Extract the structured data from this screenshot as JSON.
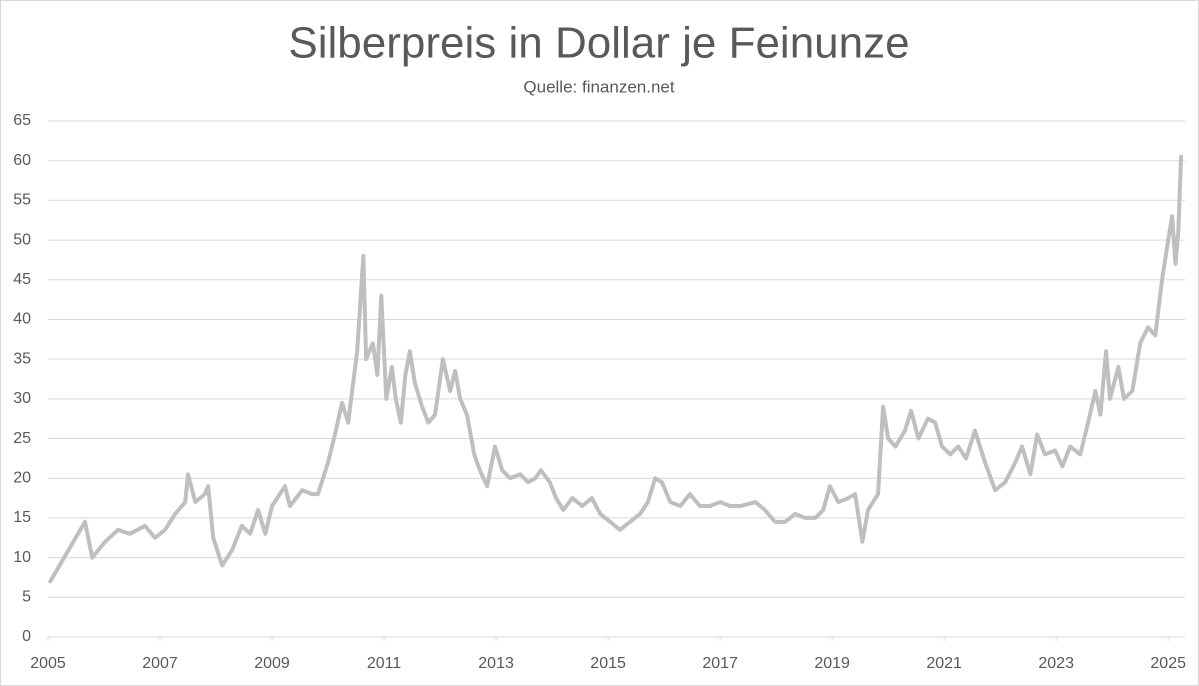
{
  "chart_data": {
    "type": "line",
    "title": "Silberpreis in Dollar je Feinunze",
    "subtitle": "Quelle: finanzen.net",
    "color": "#bfbfbf",
    "grid": true,
    "xlim": [
      2005,
      2025.3
    ],
    "xticks": [
      2005,
      2007,
      2009,
      2011,
      2013,
      2015,
      2017,
      2019,
      2021,
      2023,
      2025
    ],
    "ylim": [
      0,
      65
    ],
    "yticks": [
      0,
      5,
      10,
      15,
      20,
      25,
      30,
      35,
      40,
      45,
      50,
      55,
      60,
      65
    ],
    "x": [
      2005.04,
      2005.66,
      2005.79,
      2006.02,
      2006.25,
      2006.46,
      2006.73,
      2006.91,
      2007.09,
      2007.27,
      2007.45,
      2007.5,
      2007.63,
      2007.8,
      2007.86,
      2007.95,
      2008.11,
      2008.29,
      2008.46,
      2008.61,
      2008.75,
      2008.88,
      2009.0,
      2009.23,
      2009.32,
      2009.54,
      2009.71,
      2009.82,
      2010.0,
      2010.14,
      2010.25,
      2010.36,
      2010.43,
      2010.52,
      2010.63,
      2010.68,
      2010.8,
      2010.88,
      2010.95,
      2011.04,
      2011.14,
      2011.21,
      2011.3,
      2011.38,
      2011.46,
      2011.55,
      2011.68,
      2011.79,
      2011.91,
      2012.05,
      2012.18,
      2012.27,
      2012.36,
      2012.48,
      2012.61,
      2012.71,
      2012.84,
      2012.98,
      2013.11,
      2013.25,
      2013.43,
      2013.57,
      2013.7,
      2013.8,
      2013.96,
      2014.07,
      2014.2,
      2014.36,
      2014.54,
      2014.71,
      2014.86,
      2015.04,
      2015.21,
      2015.39,
      2015.57,
      2015.71,
      2015.84,
      2015.96,
      2016.11,
      2016.29,
      2016.46,
      2016.64,
      2016.82,
      2017.0,
      2017.18,
      2017.36,
      2017.63,
      2017.8,
      2017.98,
      2018.16,
      2018.34,
      2018.52,
      2018.7,
      2018.84,
      2018.96,
      2019.11,
      2019.29,
      2019.41,
      2019.54,
      2019.64,
      2019.82,
      2019.91,
      2020.0,
      2020.13,
      2020.3,
      2020.41,
      2020.54,
      2020.71,
      2020.84,
      2020.96,
      2021.11,
      2021.25,
      2021.39,
      2021.55,
      2021.73,
      2021.91,
      2022.09,
      2022.27,
      2022.39,
      2022.54,
      2022.66,
      2022.8,
      2022.98,
      2023.11,
      2023.25,
      2023.43,
      2023.57,
      2023.7,
      2023.79,
      2023.89,
      2023.96,
      2024.11,
      2024.21,
      2024.36,
      2024.5,
      2024.64,
      2024.77,
      2024.89,
      2025.0,
      2025.07,
      2025.13,
      2025.18,
      2025.23
    ],
    "values": [
      7,
      14.5,
      10,
      12,
      13.5,
      13,
      14,
      12.5,
      13.5,
      15.5,
      17,
      20.5,
      17,
      18,
      19,
      12.5,
      9,
      11,
      14,
      13,
      16,
      13,
      16.5,
      19,
      16.5,
      18.5,
      18,
      18,
      22,
      26,
      29.5,
      27,
      31,
      36,
      48,
      35,
      37,
      33,
      43,
      30,
      34,
      30,
      27,
      33,
      36,
      32,
      29,
      27,
      28,
      35,
      31,
      33.5,
      30,
      28,
      23,
      21,
      19,
      24,
      21,
      20,
      20.5,
      19.5,
      20,
      21,
      19.5,
      17.5,
      16,
      17.5,
      16.5,
      17.5,
      15.5,
      14.5,
      13.5,
      14.5,
      15.5,
      17,
      20,
      19.5,
      17,
      16.5,
      18,
      16.5,
      16.5,
      17,
      16.5,
      16.5,
      17,
      16,
      14.5,
      14.5,
      15.5,
      15,
      15,
      16,
      19,
      17,
      17.5,
      18,
      12,
      16,
      18,
      29,
      25,
      24,
      26,
      28.5,
      25,
      27.5,
      27,
      24,
      23,
      24,
      22.5,
      26,
      22,
      18.5,
      19.5,
      22,
      24,
      20.5,
      25.5,
      23,
      23.5,
      21.5,
      24,
      23,
      27,
      31,
      28,
      36,
      30,
      34,
      30,
      31,
      37,
      39,
      38,
      45,
      50,
      53,
      47,
      51,
      60.5
    ]
  }
}
